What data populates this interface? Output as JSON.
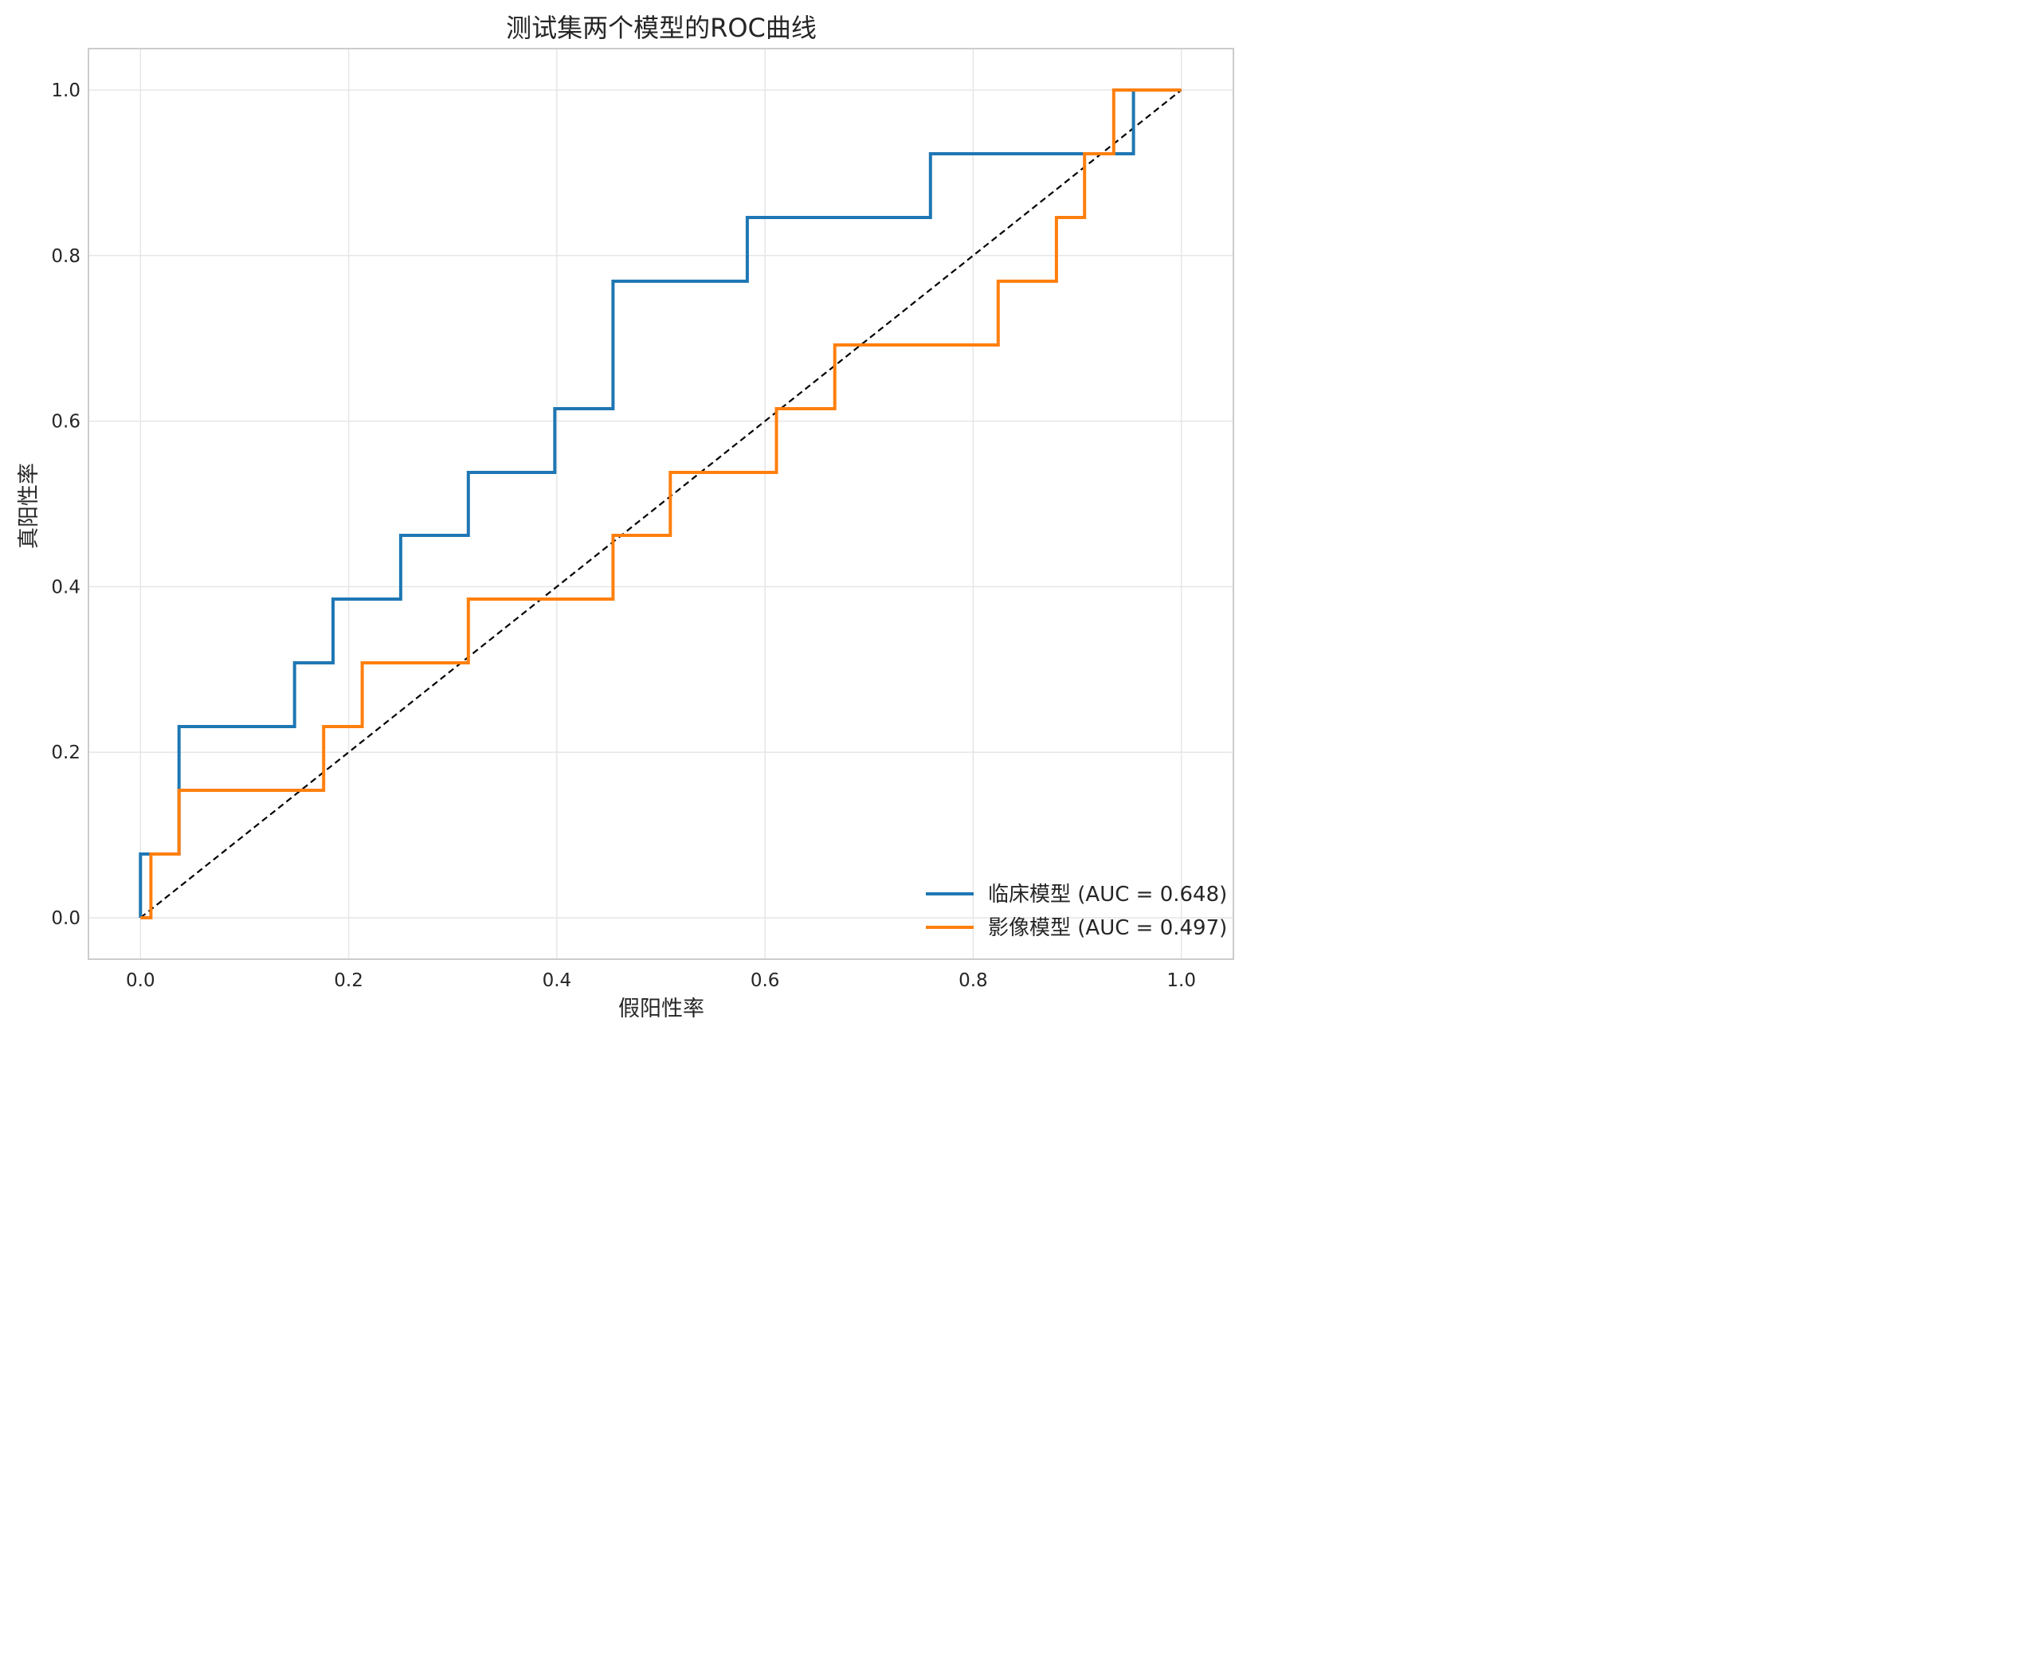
{
  "chart_data": {
    "type": "line",
    "title": "测试集两个模型的ROC曲线",
    "xlabel": "假阳性率",
    "ylabel": "真阳性率",
    "xlim": [
      -0.05,
      1.05
    ],
    "ylim": [
      -0.05,
      1.05
    ],
    "x_ticks": [
      "0.0",
      "0.2",
      "0.4",
      "0.6",
      "0.8",
      "1.0"
    ],
    "y_ticks": [
      "0.0",
      "0.2",
      "0.4",
      "0.6",
      "0.8",
      "1.0"
    ],
    "grid": true,
    "legend_position": "lower-right",
    "series": [
      {
        "name": "临床模型 (AUC = 0.648)",
        "color": "#1f77b4",
        "x": [
          0.0,
          0.0,
          0.008,
          0.008,
          0.037,
          0.037,
          0.148,
          0.148,
          0.185,
          0.185,
          0.25,
          0.25,
          0.315,
          0.315,
          0.398,
          0.398,
          0.454,
          0.454,
          0.583,
          0.583,
          0.759,
          0.759,
          0.954,
          0.954
        ],
        "y": [
          0.0,
          0.077,
          0.077,
          0.077,
          0.077,
          0.231,
          0.231,
          0.308,
          0.308,
          0.385,
          0.385,
          0.462,
          0.462,
          0.538,
          0.538,
          0.615,
          0.615,
          0.769,
          0.769,
          0.846,
          0.846,
          0.923,
          0.923,
          1.0
        ]
      },
      {
        "name": "影像模型 (AUC = 0.497)",
        "color": "#ff7f0e",
        "x": [
          0.0,
          0.01,
          0.01,
          0.037,
          0.037,
          0.176,
          0.176,
          0.213,
          0.213,
          0.315,
          0.315,
          0.454,
          0.454,
          0.509,
          0.509,
          0.611,
          0.611,
          0.667,
          0.667,
          0.824,
          0.824,
          0.88,
          0.88,
          0.907,
          0.907,
          0.935,
          0.935,
          1.0
        ],
        "y": [
          0.0,
          0.0,
          0.077,
          0.077,
          0.154,
          0.154,
          0.231,
          0.231,
          0.308,
          0.308,
          0.385,
          0.385,
          0.462,
          0.462,
          0.538,
          0.538,
          0.615,
          0.615,
          0.692,
          0.692,
          0.769,
          0.769,
          0.846,
          0.846,
          0.923,
          0.923,
          1.0,
          1.0
        ]
      }
    ],
    "reference_line": {
      "x": [
        0.0,
        1.0
      ],
      "y": [
        0.0,
        1.0
      ],
      "color": "#000000",
      "style": "dashed"
    }
  }
}
